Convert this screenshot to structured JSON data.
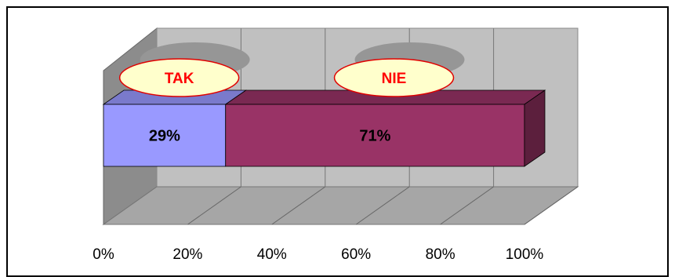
{
  "chart_data": {
    "type": "bar",
    "orientation": "horizontal",
    "stacked": true,
    "style": "3d",
    "series": [
      {
        "name": "TAK",
        "value": 29,
        "label": "29%",
        "color": "#9999ff"
      },
      {
        "name": "NIE",
        "value": 71,
        "label": "71%",
        "color": "#993366"
      }
    ],
    "x_ticks": [
      "0%",
      "20%",
      "40%",
      "60%",
      "80%",
      "100%"
    ],
    "xlim": [
      0,
      100
    ],
    "grid": true,
    "legend": "callouts-above-bar"
  }
}
